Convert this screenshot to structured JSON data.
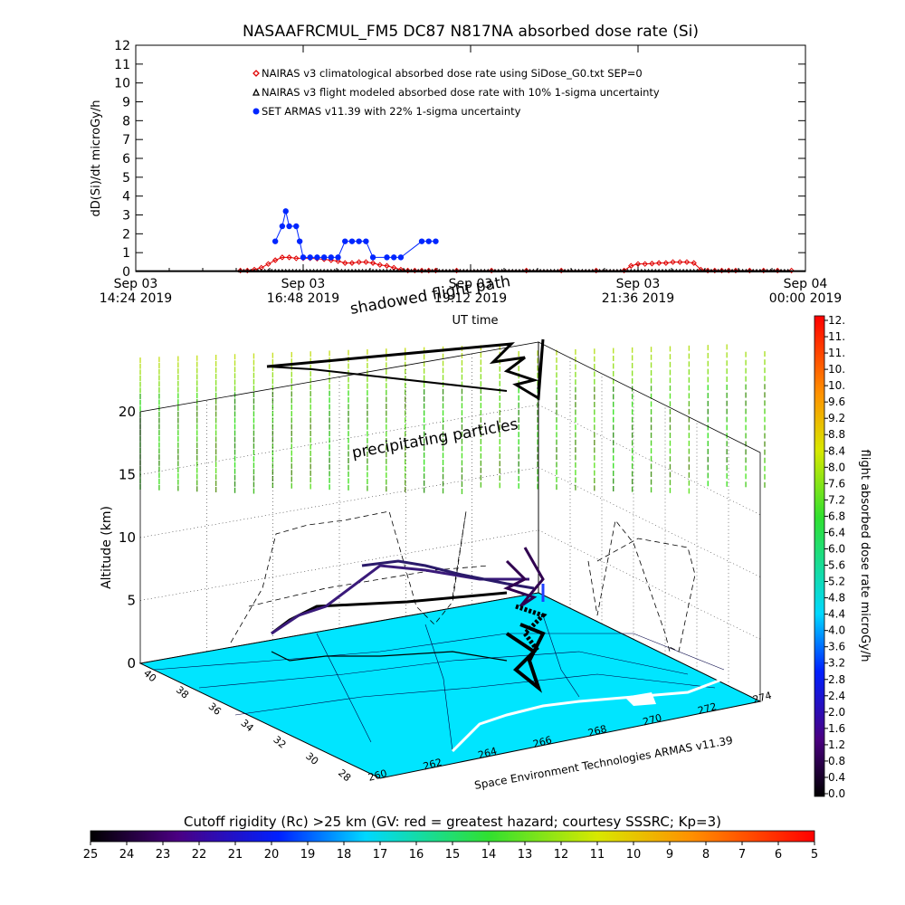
{
  "title": "NASAAFRCMUL_FM5 DC87 N817NA absorbed dose rate (Si)",
  "credit": "Space Environment Technologies ARMAS v11.39",
  "colors": {
    "nairas_clim": "#e00000",
    "nairas_flight": "#000000",
    "armas": "#0026ff",
    "ground": "#00e5ff",
    "flight_path": "#000000"
  },
  "chart_data": [
    {
      "type": "line",
      "title": "NASAAFRCMUL_FM5 DC87 N817NA absorbed dose rate (Si)",
      "xlabel": "UT time",
      "ylabel": "dD(Si)/dt microGy/h",
      "ylim": [
        0,
        12
      ],
      "yticks": [
        "0",
        "1",
        "2",
        "3",
        "4",
        "5",
        "6",
        "7",
        "8",
        "9",
        "10",
        "11",
        "12"
      ],
      "xlim_hours": [
        14.4,
        24.0
      ],
      "xticks": [
        {
          "line1": "Sep 03",
          "line2": "14:24 2019"
        },
        {
          "line1": "Sep 03",
          "line2": "16:48 2019"
        },
        {
          "line1": "Sep 03",
          "line2": "19:12 2019"
        },
        {
          "line1": "Sep 03",
          "line2": "21:36 2019"
        },
        {
          "line1": "Sep 04",
          "line2": "00:00 2019"
        }
      ],
      "legend_placement": "top-center",
      "series": [
        {
          "name": "NAIRAS v3 climatological absorbed dose rate using SiDose_G0.txt SEP=0",
          "marker": "diamond",
          "x": [
            15.9,
            16.0,
            16.1,
            16.2,
            16.3,
            16.4,
            16.5,
            16.6,
            16.7,
            16.8,
            16.9,
            17.0,
            17.1,
            17.2,
            17.3,
            17.4,
            17.5,
            17.6,
            17.7,
            17.8,
            17.9,
            18.0,
            18.1,
            18.2,
            18.3,
            18.4,
            18.5,
            18.6,
            18.7,
            19.0,
            19.5,
            20.0,
            20.5,
            21.0,
            21.4,
            21.5,
            21.6,
            21.7,
            21.8,
            21.9,
            22.0,
            22.1,
            22.2,
            22.3,
            22.4,
            22.5,
            22.6,
            22.7,
            22.8,
            22.9,
            23.0,
            23.2,
            23.4,
            23.6,
            23.8
          ],
          "y": [
            0.05,
            0.05,
            0.1,
            0.2,
            0.4,
            0.6,
            0.75,
            0.75,
            0.7,
            0.7,
            0.7,
            0.68,
            0.65,
            0.6,
            0.55,
            0.45,
            0.45,
            0.5,
            0.5,
            0.45,
            0.35,
            0.3,
            0.2,
            0.1,
            0.05,
            0.05,
            0.05,
            0.05,
            0.05,
            0.05,
            0.05,
            0.05,
            0.05,
            0.05,
            0.05,
            0.3,
            0.4,
            0.4,
            0.42,
            0.45,
            0.45,
            0.5,
            0.5,
            0.5,
            0.45,
            0.1,
            0.05,
            0.05,
            0.05,
            0.05,
            0.05,
            0.05,
            0.05,
            0.05,
            0.05
          ]
        },
        {
          "name": "NAIRAS v3 flight modeled absorbed dose rate with 10% 1-sigma uncertainty",
          "marker": "triangle",
          "x": [
            14.4,
            24.0
          ],
          "y": [
            0.02,
            0.02
          ]
        },
        {
          "name": "SET ARMAS v11.39 with 22% 1-sigma uncertainty",
          "marker": "circle",
          "x": [
            16.4,
            16.5,
            16.55,
            16.6,
            16.7,
            16.75,
            16.8,
            16.9,
            17.0,
            17.1,
            17.2,
            17.3,
            17.4,
            17.5,
            17.6,
            17.7,
            17.8,
            18.0,
            18.1,
            18.2,
            18.5,
            18.6,
            18.7
          ],
          "y": [
            1.6,
            2.4,
            3.2,
            2.4,
            2.4,
            1.6,
            0.75,
            0.75,
            0.75,
            0.75,
            0.75,
            0.75,
            1.6,
            1.6,
            1.6,
            1.6,
            0.75,
            0.75,
            0.75,
            0.75,
            1.6,
            1.6,
            1.6
          ]
        }
      ]
    },
    {
      "type": "scatter",
      "subtype": "3d-flight-path",
      "zlabel": "Altitude (km)",
      "zlim": [
        0,
        20
      ],
      "zticks": [
        "0",
        "5",
        "10",
        "15",
        "20"
      ],
      "lat_ticks": [
        "40",
        "38",
        "36",
        "34",
        "32",
        "30",
        "28"
      ],
      "lon_ticks": [
        "260",
        "262",
        "264",
        "266",
        "268",
        "270",
        "272",
        "274"
      ],
      "annotations": [
        "shadowed flight path",
        "precipitating particles"
      ],
      "colorbar": {
        "label": "flight absorbed dose rate microGy/h",
        "ticks": [
          "0.0",
          "0.4",
          "0.8",
          "1.2",
          "1.6",
          "2.0",
          "2.4",
          "2.8",
          "3.2",
          "3.6",
          "4.0",
          "4.4",
          "4.8",
          "5.2",
          "5.6",
          "6.0",
          "6.4",
          "6.8",
          "7.2",
          "7.6",
          "8.0",
          "8.4",
          "8.8",
          "9.2",
          "9.6",
          "10.",
          "10.",
          "11.",
          "11.",
          "12."
        ]
      }
    },
    {
      "type": "heatmap",
      "subtype": "colorbar",
      "label": "Cutoff rigidity (Rc) >25 km (GV: red = greatest hazard; courtesy SSSRC; Kp=3)",
      "ticks": [
        "25",
        "24",
        "23",
        "22",
        "21",
        "20",
        "19",
        "18",
        "17",
        "16",
        "15",
        "14",
        "13",
        "12",
        "11",
        "10",
        "9",
        "8",
        "7",
        "6",
        "5"
      ]
    }
  ]
}
